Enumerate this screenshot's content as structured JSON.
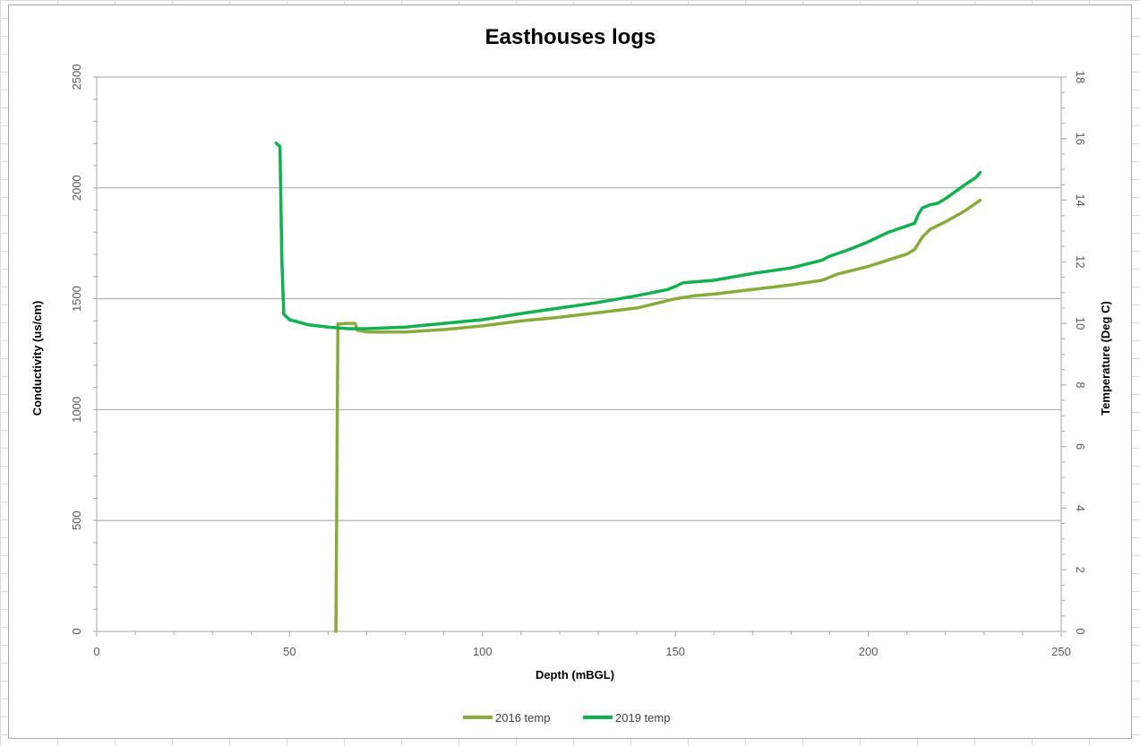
{
  "chart_data": {
    "type": "line",
    "title": "Easthouses logs",
    "xlabel": "Depth (mBGL)",
    "ylabel": "Conductivity (us/cm)",
    "y2label": "Temperature  (Deg C)",
    "xlim": [
      0,
      250
    ],
    "ylim": [
      0,
      2500
    ],
    "y2lim": [
      0,
      18
    ],
    "x_ticks": [
      "0",
      "50",
      "100",
      "150",
      "200",
      "250"
    ],
    "y_ticks": [
      "0",
      "500",
      "1000",
      "1500",
      "2000",
      "2500"
    ],
    "y2_ticks": [
      "0",
      "2",
      "4",
      "6",
      "8",
      "10",
      "12",
      "14",
      "16",
      "18"
    ],
    "grid": "horizontal major gridlines",
    "legend_position": "bottom",
    "series": [
      {
        "name": "2016 temp",
        "color": "#8aab3c",
        "axis": "right",
        "x": [
          62,
          62,
          62.5,
          65,
          67,
          67.5,
          70,
          75,
          80,
          90,
          100,
          110,
          120,
          130,
          140,
          145,
          150,
          155,
          160,
          170,
          180,
          188,
          192,
          200,
          205,
          210,
          212,
          214,
          216,
          220,
          225,
          229
        ],
        "y": [
          0,
          0,
          9.98,
          10.0,
          10.0,
          9.78,
          9.72,
          9.72,
          9.72,
          9.8,
          9.92,
          10.08,
          10.2,
          10.35,
          10.5,
          10.65,
          10.8,
          10.9,
          10.95,
          11.1,
          11.25,
          11.4,
          11.6,
          11.85,
          12.05,
          12.25,
          12.4,
          12.8,
          13.05,
          13.3,
          13.65,
          14.0
        ]
      },
      {
        "name": "2019 temp",
        "color": "#12b050",
        "axis": "right",
        "x": [
          46.5,
          47.5,
          48,
          48.5,
          50,
          55,
          60,
          65,
          70,
          80,
          90,
          100,
          110,
          120,
          130,
          140,
          148,
          150,
          152,
          160,
          170,
          180,
          188,
          190,
          195,
          200,
          205,
          212,
          213,
          214,
          216,
          218,
          220,
          225,
          228,
          229
        ],
        "y": [
          15.85,
          15.75,
          12.0,
          10.3,
          10.12,
          9.95,
          9.88,
          9.83,
          9.83,
          9.88,
          10.0,
          10.12,
          10.32,
          10.5,
          10.68,
          10.9,
          11.1,
          11.2,
          11.32,
          11.4,
          11.62,
          11.8,
          12.05,
          12.18,
          12.4,
          12.65,
          12.95,
          13.25,
          13.55,
          13.75,
          13.85,
          13.9,
          14.05,
          14.5,
          14.75,
          14.9
        ]
      }
    ]
  }
}
